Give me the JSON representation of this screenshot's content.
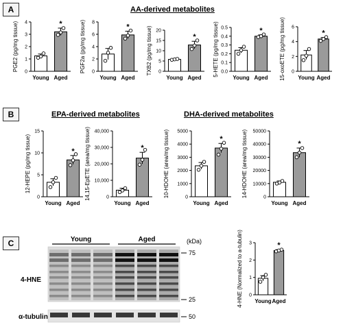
{
  "panels": {
    "a": "A",
    "b": "B",
    "c": "C"
  },
  "sections": {
    "aa": "AA-derived metabolites",
    "epa": "EPA-derived metabolites",
    "dha": "DHA-derived metabolites"
  },
  "chart_data": [
    {
      "type": "bar",
      "ylabel": "PGE2 (pg/mg tissue)",
      "categories": [
        "Young",
        "Aged"
      ],
      "values": [
        1.25,
        3.2
      ],
      "errors": [
        0.15,
        0.3
      ],
      "points": [
        [
          1.1,
          1.2,
          1.45
        ],
        [
          2.95,
          3.15,
          3.5
        ]
      ],
      "ylim": [
        0,
        4
      ],
      "yticks": [
        0,
        1,
        2,
        3,
        4
      ],
      "significant": [
        false,
        true
      ],
      "sig_symbol": "*"
    },
    {
      "type": "bar",
      "ylabel": "PGF2a (pg/mg tissue)",
      "categories": [
        "Young",
        "Aged"
      ],
      "values": [
        2.8,
        5.9
      ],
      "errors": [
        0.9,
        0.6
      ],
      "points": [
        [
          1.7,
          3.0,
          3.8
        ],
        [
          5.3,
          5.8,
          6.6
        ]
      ],
      "ylim": [
        0,
        8
      ],
      "yticks": [
        0,
        2,
        4,
        6,
        8
      ],
      "significant": [
        false,
        true
      ],
      "sig_symbol": "*"
    },
    {
      "type": "bar",
      "ylabel": "TXB2 (pg/mg tissue)",
      "categories": [
        "Young",
        "Aged"
      ],
      "values": [
        5.8,
        12.8
      ],
      "errors": [
        0.3,
        1.8
      ],
      "points": [
        [
          5.6,
          5.8,
          6.0
        ],
        [
          10.8,
          12.5,
          15.0
        ]
      ],
      "ylim": [
        0,
        20
      ],
      "yticks": [
        0,
        5,
        10,
        15,
        20
      ],
      "significant": [
        false,
        true
      ],
      "sig_symbol": "*"
    },
    {
      "type": "bar",
      "ylabel": "5-HETE (pg/mg tissue)",
      "categories": [
        "Young",
        "Aged"
      ],
      "values": [
        0.24,
        0.4
      ],
      "errors": [
        0.03,
        0.015
      ],
      "points": [
        [
          0.2,
          0.24,
          0.28
        ],
        [
          0.39,
          0.4,
          0.42
        ]
      ],
      "ylim": [
        0,
        0.5
      ],
      "yticks": [
        0,
        0.1,
        0.2,
        0.3,
        0.4,
        0.5
      ],
      "yticklabels": [
        "0.0",
        "0.1",
        "0.2",
        "0.3",
        "0.4",
        "0.5"
      ],
      "significant": [
        false,
        true
      ],
      "sig_symbol": "*"
    },
    {
      "type": "bar",
      "ylabel": "15-oxoETE (pg/mg tissue)",
      "categories": [
        "Young",
        "Aged"
      ],
      "values": [
        2.2,
        4.35
      ],
      "errors": [
        0.6,
        0.2
      ],
      "points": [
        [
          1.5,
          2.1,
          3.0
        ],
        [
          4.1,
          4.35,
          4.6
        ]
      ],
      "ylim": [
        0,
        6
      ],
      "yticks": [
        0,
        2,
        4,
        6
      ],
      "significant": [
        false,
        true
      ],
      "sig_symbol": "*"
    },
    {
      "type": "bar",
      "ylabel": "12-HEPE (pg/mg tissue)",
      "categories": [
        "Young",
        "Aged"
      ],
      "values": [
        3.3,
        8.4
      ],
      "errors": [
        0.8,
        1.0
      ],
      "points": [
        [
          2.2,
          3.3,
          4.3
        ],
        [
          7.2,
          8.3,
          9.7
        ]
      ],
      "ylim": [
        0,
        15
      ],
      "yticks": [
        0,
        5,
        10,
        15
      ],
      "significant": [
        false,
        true
      ],
      "sig_symbol": "*"
    },
    {
      "type": "bar",
      "ylabel": "14,15-EpETE (area/mg tissue)",
      "categories": [
        "Young",
        "Aged"
      ],
      "values": [
        4000,
        23500
      ],
      "errors": [
        1200,
        3500
      ],
      "points": [
        [
          2800,
          3800,
          5200
        ],
        [
          19500,
          22500,
          28500
        ]
      ],
      "ylim": [
        0,
        40000
      ],
      "yticks": [
        0,
        10000,
        20000,
        30000,
        40000
      ],
      "yticklabels": [
        "0",
        "10,000",
        "20,000",
        "30,000",
        "40,000"
      ],
      "significant": [
        false,
        true
      ],
      "sig_symbol": "*"
    },
    {
      "type": "bar",
      "ylabel": "10-HDOHE (area/mg tissue)",
      "categories": [
        "Young",
        "Aged"
      ],
      "values": [
        2350,
        3700
      ],
      "errors": [
        250,
        350
      ],
      "points": [
        [
          2050,
          2350,
          2650
        ],
        [
          3200,
          3650,
          4100
        ]
      ],
      "ylim": [
        0,
        5000
      ],
      "yticks": [
        0,
        1000,
        2000,
        3000,
        4000,
        5000
      ],
      "yticklabels": [
        "0",
        "1000",
        "2000",
        "3000",
        "4000",
        "5000"
      ],
      "significant": [
        false,
        true
      ],
      "sig_symbol": "*"
    },
    {
      "type": "bar",
      "ylabel": "14-HDOHE (area/mg tissue)",
      "categories": [
        "Young",
        "Aged"
      ],
      "values": [
        11000,
        33500
      ],
      "errors": [
        1000,
        3500
      ],
      "points": [
        [
          10000,
          10800,
          12000
        ],
        [
          30000,
          33500,
          37000
        ]
      ],
      "ylim": [
        0,
        50000
      ],
      "yticks": [
        0,
        10000,
        20000,
        30000,
        40000,
        50000
      ],
      "yticklabels": [
        "0",
        "10000",
        "20000",
        "30000",
        "40000",
        "50000"
      ],
      "significant": [
        false,
        true
      ],
      "sig_symbol": "*"
    },
    {
      "type": "bar",
      "ylabel": "4-HNE (Normalized to a-tubulin)",
      "categories": [
        "Young",
        "Aged"
      ],
      "values": [
        0.95,
        2.55
      ],
      "errors": [
        0.15,
        0.05
      ],
      "points": [
        [
          0.75,
          1.0,
          1.15
        ],
        [
          2.5,
          2.55,
          2.6
        ]
      ],
      "ylim": [
        0,
        3
      ],
      "yticks": [
        0,
        1,
        2,
        3
      ],
      "significant": [
        false,
        true
      ],
      "sig_symbol": "*"
    }
  ],
  "western_blot": {
    "groups": [
      "Young",
      "Aged"
    ],
    "lanes_per_group": 3,
    "unit_label": "(kDa)",
    "markers": [
      "75",
      "25",
      "50"
    ],
    "rows": [
      "4-HNE",
      "α-tubulin"
    ],
    "intensity_young": 0.45,
    "intensity_aged": 0.95
  }
}
